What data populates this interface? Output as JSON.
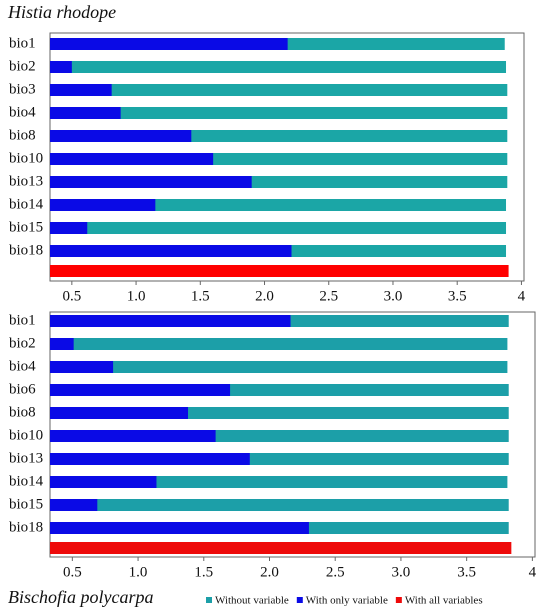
{
  "chart_data": [
    {
      "type": "hbar-jackknife",
      "title": "Histia rhodope",
      "categories": [
        "bio1",
        "bio2",
        "bio3",
        "bio4",
        "bio8",
        "bio10",
        "bio13",
        "bio14",
        "bio15",
        "bio18"
      ],
      "series": [
        {
          "color": "#1ba6a6",
          "values": [
            3.87,
            3.88,
            3.89,
            3.89,
            3.89,
            3.89,
            3.89,
            3.88,
            3.88,
            3.88
          ]
        },
        {
          "color": "#0a0ae6",
          "values": [
            2.18,
            0.5,
            0.81,
            0.88,
            1.43,
            1.6,
            1.9,
            1.15,
            0.62,
            2.21
          ]
        }
      ],
      "total": {
        "color": "#ff0000",
        "value": 3.9
      },
      "xlim": [
        0.33,
        4.02
      ],
      "xticks": [
        0.5,
        {
          "value": 1,
          "label": "1.0"
        },
        1.5,
        {
          "value": 2,
          "label": "2.0"
        },
        2.5,
        {
          "value": 3,
          "label": "3.0"
        },
        3.5,
        4
      ]
    },
    {
      "type": "hbar-jackknife",
      "title": "Bischofia polycarpa",
      "categories": [
        "bio1",
        "bio2",
        "bio4",
        "bio6",
        "bio8",
        "bio10",
        "bio13",
        "bio14",
        "bio15",
        "bio18"
      ],
      "series": [
        {
          "name": "Without variable",
          "color": "#1c9fa8",
          "values": [
            3.82,
            3.81,
            3.81,
            3.82,
            3.82,
            3.82,
            3.82,
            3.81,
            3.82,
            3.82
          ]
        },
        {
          "name": "With only variable",
          "color": "#0a0ae6",
          "values": [
            2.16,
            0.51,
            0.81,
            1.7,
            1.38,
            1.59,
            1.85,
            1.14,
            0.69,
            2.3
          ]
        }
      ],
      "total": {
        "name": "With all variables",
        "color": "#ee0a0a",
        "value": 3.84
      },
      "xlim": [
        0.33,
        4.02
      ],
      "xticks": [
        0.5,
        {
          "value": 1,
          "label": "1.0"
        },
        1.5,
        {
          "value": 2,
          "label": "2.0"
        },
        2.5,
        {
          "value": 3,
          "label": "3.0"
        },
        3.5,
        4
      ]
    }
  ]
}
